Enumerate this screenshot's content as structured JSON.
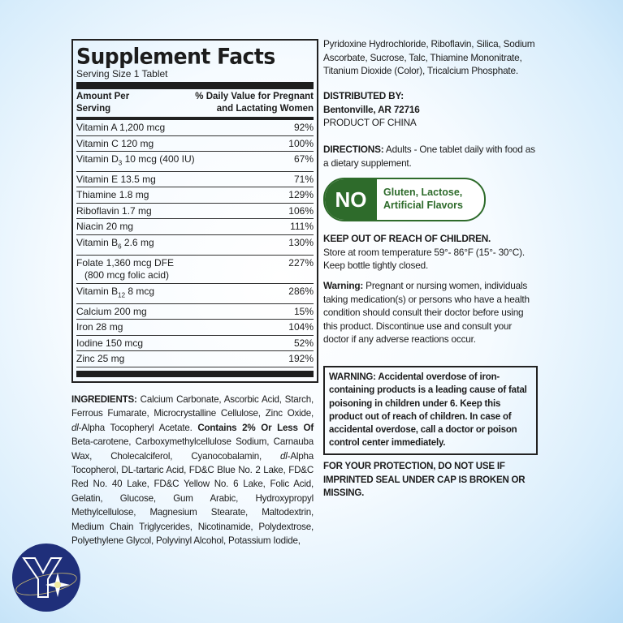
{
  "facts": {
    "title": "Supplement Facts",
    "serving": "Serving Size 1 Tablet",
    "header_left": [
      "Amount Per",
      "Serving"
    ],
    "header_right": [
      "% Daily Value for Pregnant",
      "and Lactating Women"
    ],
    "rows": [
      {
        "name": "Vitamin A 1,200 mcg",
        "dv": "92%"
      },
      {
        "name": "Vitamin C 120 mg",
        "dv": "100%"
      },
      {
        "name": "Vitamin D",
        "sub": "3",
        "rest": " 10 mcg (400 IU)",
        "dv": "67%"
      },
      {
        "name": "Vitamin E 13.5 mg",
        "dv": "71%"
      },
      {
        "name": "Thiamine 1.8 mg",
        "dv": "129%"
      },
      {
        "name": "Riboflavin 1.7 mg",
        "dv": "106%"
      },
      {
        "name": "Niacin 20 mg",
        "dv": "111%"
      },
      {
        "name": "Vitamin B",
        "sub": "6",
        "rest": " 2.6 mg",
        "dv": "130%"
      },
      {
        "name": "Folate 1,360 mcg DFE",
        "line2": "   (800 mcg folic acid)",
        "dv": "227%"
      },
      {
        "name": "Vitamin B",
        "sub": "12",
        "rest": " 8 mcg",
        "dv": "286%"
      },
      {
        "name": "Calcium 200 mg",
        "dv": "15%"
      },
      {
        "name": "Iron 28 mg",
        "dv": "104%"
      },
      {
        "name": "Iodine 150 mcg",
        "dv": "52%"
      },
      {
        "name": "Zinc 25 mg",
        "dv": "192%"
      }
    ]
  },
  "ingredients": {
    "label": "INGREDIENTS:",
    "part1": " Calcium Carbonate, Ascorbic Acid, Starch, Ferrous Fumarate, Microcrystalline Cellulose, Zinc Oxide, ",
    "dl1": "dl",
    "part2": "-Alpha Tocopheryl Acetate. ",
    "contains": "Contains 2% Or Less Of",
    "part3": " Beta-carotene, Carboxymethylcellulose Sodium, Carnauba Wax, Cholecalciferol, Cyanocobalamin, ",
    "dl2": "dl",
    "part4": "-Alpha Tocopherol, DL-tartaric Acid, FD&C Blue No. 2 Lake, FD&C Red No. 40 Lake, FD&C Yellow No. 6 Lake, Folic Acid, Gelatin, Glucose, Gum Arabic, Hydroxypropyl Methylcellulose, Magnesium Stearate, Maltodextrin, Medium Chain Triglycerides, Nicotinamide, Polydextrose, Polyethylene Glycol, Polyvinyl Alcohol, Potassium Iodide,",
    "continued": "Pyridoxine Hydrochloride, Riboflavin, Silica, Sodium Ascorbate, Sucrose, Talc, Thiamine Mononitrate, Titanium Dioxide (Color), Tricalcium Phosphate."
  },
  "distributed": {
    "label": "DISTRIBUTED BY:",
    "address": "Bentonville, AR 72716",
    "origin": "PRODUCT OF CHINA"
  },
  "directions": {
    "label": "DIRECTIONS:",
    "text": " Adults - One tablet daily with food as a dietary supplement."
  },
  "badge": {
    "no": "NO",
    "line1": "Gluten, Lactose,",
    "line2": "Artificial Flavors",
    "color": "#2e6b2b"
  },
  "storage": {
    "label": "KEEP OUT OF REACH OF CHILDREN.",
    "text": "Store at room temperature 59°- 86°F (15°- 30°C). Keep bottle tightly closed."
  },
  "warning": {
    "label": "Warning:",
    "text": " Pregnant or nursing women, individuals taking medication(s) or persons who have a health condition should consult their doctor before using this product. Discontinue use and consult your doctor if any adverse reactions occur."
  },
  "iron_warning": "WARNING: Accidental overdose of iron-containing products is a leading cause of fatal poisoning in children under 6. Keep this product out of reach of children. In case of accidental overdose, call a doctor or poison control center immediately.",
  "protection": "FOR YOUR PROTECTION, DO NOT USE IF IMPRINTED SEAL UNDER CAP IS BROKEN OR MISSING.",
  "logo": {
    "letter": "Y",
    "color": "#1f2f7a"
  }
}
